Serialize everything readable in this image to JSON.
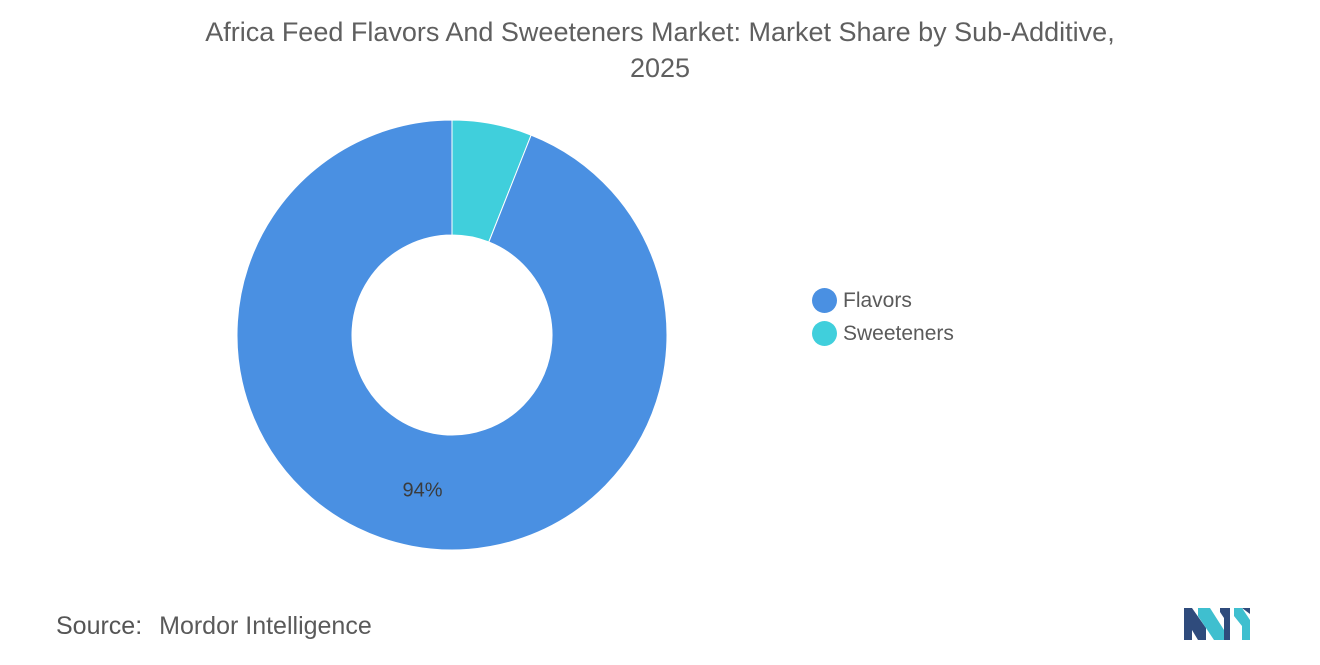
{
  "title": {
    "line1": "Africa Feed Flavors And Sweeteners Market: Market Share by Sub-Additive,",
    "line2": "2025"
  },
  "chart_data": {
    "type": "pie",
    "style": "donut",
    "categories": [
      "Flavors",
      "Sweeteners"
    ],
    "values": [
      94,
      6
    ],
    "colors": [
      "#4a90e2",
      "#40cfdc"
    ],
    "data_labels": [
      "94%",
      ""
    ],
    "legend_position": "right"
  },
  "legend": {
    "items": [
      {
        "label": "Flavors",
        "color": "#4a90e2"
      },
      {
        "label": "Sweeteners",
        "color": "#40cfdc"
      }
    ]
  },
  "source": {
    "label": "Source:",
    "value": "Mordor Intelligence"
  },
  "logo": {
    "icon": "mordor-intelligence-logo-icon",
    "colors": [
      "#2f4b7c",
      "#3fbfcf"
    ]
  }
}
